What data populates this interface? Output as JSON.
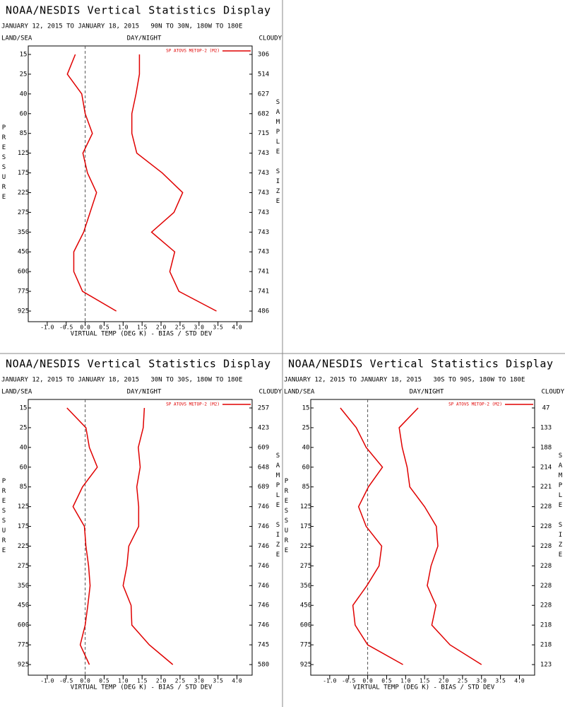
{
  "chart_data": [
    {
      "type": "line",
      "title": "NOAA/NESDIS Vertical Statistics Display",
      "subtitle": "JANUARY 12, 2015 TO JANUARY 18, 2015   90N TO 30N, 180W TO 180E",
      "land_sea_label": "LAND/SEA",
      "day_night_label": "DAY/NIGHT",
      "cloudy_label": "CLOUDY",
      "x_label": "VIRTUAL TEMP (DEG K) - BIAS / STD DEV",
      "y_label": "PRESSURE",
      "y2_label": "SAMPLE SIZE",
      "categories": [
        15,
        25,
        40,
        60,
        85,
        125,
        175,
        225,
        275,
        350,
        450,
        600,
        775,
        925
      ],
      "sample_sizes": [
        306,
        514,
        627,
        682,
        715,
        743,
        743,
        743,
        743,
        743,
        743,
        741,
        741,
        486
      ],
      "series": [
        {
          "name": "SP ATOVS METOP-2 (M2)",
          "color": "#e00000",
          "values": [
            -0.26,
            -0.47,
            -0.09,
            0.0,
            0.19,
            -0.06,
            0.06,
            0.3,
            0.13,
            -0.04,
            -0.3,
            -0.3,
            -0.07,
            0.82
          ]
        },
        {
          "color": "#e00000",
          "values": [
            1.43,
            1.43,
            1.34,
            1.23,
            1.23,
            1.36,
            2.03,
            2.57,
            2.34,
            1.75,
            2.36,
            2.23,
            2.47,
            3.46
          ]
        }
      ],
      "xlim": [
        -1.5,
        4.4
      ],
      "xticks": [
        {
          "value": -1,
          "label": "-1.0"
        },
        {
          "value": -0.5,
          "label": "-0.5"
        },
        {
          "value": 0,
          "label": "0.0"
        },
        {
          "value": 0.5,
          "label": "0.5"
        },
        {
          "value": 1,
          "label": "1.0"
        },
        {
          "value": 1.5,
          "label": "1.5"
        },
        {
          "value": 2,
          "label": "2.0"
        },
        {
          "value": 2.5,
          "label": "2.5"
        },
        {
          "value": 3,
          "label": "3.0"
        },
        {
          "value": 3.5,
          "label": "3.5"
        },
        {
          "value": 4,
          "label": "4.0"
        }
      ]
    },
    {
      "type": "line",
      "title": "NOAA/NESDIS Vertical Statistics Display",
      "subtitle": "JANUARY 12, 2015 TO JANUARY 18, 2015   30N TO 30S, 180W TO 180E",
      "land_sea_label": "LAND/SEA",
      "day_night_label": "DAY/NIGHT",
      "cloudy_label": "CLOUDY",
      "x_label": "VIRTUAL TEMP (DEG K) - BIAS / STD DEV",
      "y_label": "PRESSURE",
      "y2_label": "SAMPLE SIZE",
      "categories": [
        15,
        25,
        40,
        60,
        85,
        125,
        175,
        225,
        275,
        350,
        450,
        600,
        775,
        925
      ],
      "sample_sizes": [
        257,
        423,
        609,
        648,
        689,
        746,
        746,
        746,
        746,
        746,
        746,
        746,
        745,
        580
      ],
      "series": [
        {
          "name": "SP ATOVS METOP-2 (M2)",
          "color": "#e00000",
          "values": [
            -0.48,
            0.02,
            0.11,
            0.32,
            -0.07,
            -0.32,
            -0.02,
            0.02,
            0.09,
            0.13,
            0.07,
            0.0,
            -0.13,
            0.11
          ]
        },
        {
          "color": "#e00000",
          "values": [
            1.56,
            1.53,
            1.4,
            1.45,
            1.36,
            1.41,
            1.41,
            1.15,
            1.1,
            1.0,
            1.21,
            1.23,
            1.69,
            2.31
          ]
        }
      ],
      "xlim": [
        -1.5,
        4.4
      ],
      "xticks": [
        {
          "value": -1,
          "label": "-1.0"
        },
        {
          "value": -0.5,
          "label": "-0.5"
        },
        {
          "value": 0,
          "label": "0.0"
        },
        {
          "value": 0.5,
          "label": "0.5"
        },
        {
          "value": 1,
          "label": "1.0"
        },
        {
          "value": 1.5,
          "label": "1.5"
        },
        {
          "value": 2,
          "label": "2.0"
        },
        {
          "value": 2.5,
          "label": "2.5"
        },
        {
          "value": 3,
          "label": "3.0"
        },
        {
          "value": 3.5,
          "label": "3.5"
        },
        {
          "value": 4,
          "label": "4.0"
        }
      ]
    },
    {
      "type": "line",
      "title": "NOAA/NESDIS Vertical Statistics Display",
      "subtitle": "JANUARY 12, 2015 TO JANUARY 18, 2015   30S TO 90S, 180W TO 180E",
      "land_sea_label": "LAND/SEA",
      "day_night_label": "DAY/NIGHT",
      "cloudy_label": "CLOUDY",
      "x_label": "VIRTUAL TEMP (DEG K) - BIAS / STD DEV",
      "y_label": "PRESSURE",
      "y2_label": "SAMPLE SIZE",
      "categories": [
        15,
        25,
        40,
        60,
        85,
        125,
        175,
        225,
        275,
        350,
        450,
        600,
        775,
        925
      ],
      "sample_sizes": [
        47,
        133,
        188,
        214,
        221,
        228,
        228,
        228,
        228,
        228,
        228,
        218,
        218,
        123
      ],
      "series": [
        {
          "name": "SP ATOVS METOP-2 (M2)",
          "color": "#e00000",
          "values": [
            -0.72,
            -0.3,
            -0.04,
            0.39,
            0.02,
            -0.24,
            -0.04,
            0.37,
            0.3,
            -0.02,
            -0.39,
            -0.33,
            0.0,
            0.93
          ]
        },
        {
          "color": "#e00000",
          "values": [
            1.33,
            0.83,
            0.91,
            1.04,
            1.11,
            1.5,
            1.81,
            1.85,
            1.67,
            1.57,
            1.8,
            1.69,
            2.17,
            3.0
          ]
        }
      ],
      "xlim": [
        -1.5,
        4.4
      ],
      "xticks": [
        {
          "value": -1,
          "label": "-1.0"
        },
        {
          "value": -0.5,
          "label": "-0.5"
        },
        {
          "value": 0,
          "label": "0.0"
        },
        {
          "value": 0.5,
          "label": "0.5"
        },
        {
          "value": 1,
          "label": "1.0"
        },
        {
          "value": 1.5,
          "label": "1.5"
        },
        {
          "value": 2,
          "label": "2.0"
        },
        {
          "value": 2.5,
          "label": "2.5"
        },
        {
          "value": 3,
          "label": "3.0"
        },
        {
          "value": 3.5,
          "label": "3.5"
        },
        {
          "value": 4,
          "label": "4.0"
        }
      ]
    }
  ]
}
